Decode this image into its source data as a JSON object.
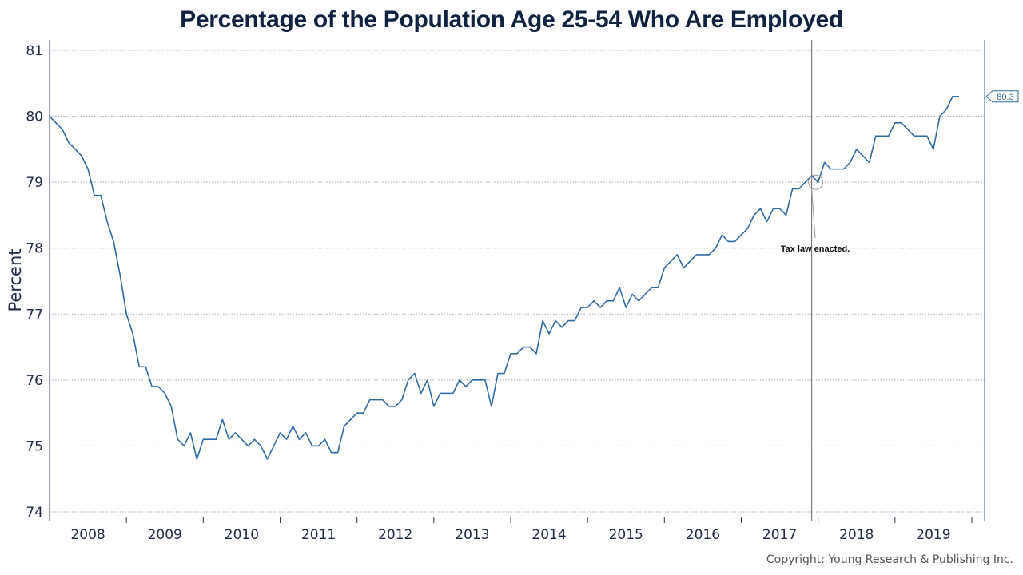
{
  "chart_data": {
    "type": "line",
    "title": "Percentage of the Population Age 25-54 Who Are Employed",
    "ylabel": "Percent",
    "xlabel": "",
    "ylim": [
      74,
      81
    ],
    "yticks": [
      74,
      75,
      76,
      77,
      78,
      79,
      80,
      81
    ],
    "xlim": [
      "2008-01",
      "2020-03"
    ],
    "x_tick_labels": [
      "2008",
      "2009",
      "2010",
      "2011",
      "2012",
      "2013",
      "2014",
      "2015",
      "2016",
      "2017",
      "2018",
      "2019"
    ],
    "grid": "horizontal dotted",
    "line_color": "#2e6ba6",
    "start": "2008-01",
    "frequency": "monthly",
    "series": [
      {
        "values": [
          80.0,
          79.9,
          79.8,
          79.6,
          79.5,
          79.4,
          79.2,
          78.8,
          78.8,
          78.4,
          78.1,
          77.6,
          77.0,
          76.7,
          76.2,
          76.2,
          75.9,
          75.9,
          75.8,
          75.6,
          75.1,
          75.0,
          75.2,
          74.8,
          75.1,
          75.1,
          75.1,
          75.4,
          75.1,
          75.2,
          75.1,
          75.0,
          75.1,
          75.0,
          74.8,
          75.0,
          75.2,
          75.1,
          75.3,
          75.1,
          75.2,
          75.0,
          75.0,
          75.1,
          74.9,
          74.9,
          75.3,
          75.4,
          75.5,
          75.5,
          75.7,
          75.7,
          75.7,
          75.6,
          75.6,
          75.7,
          76.0,
          76.1,
          75.8,
          76.0,
          75.6,
          75.8,
          75.8,
          75.8,
          76.0,
          75.9,
          76.0,
          76.0,
          76.0,
          75.6,
          76.1,
          76.1,
          76.4,
          76.4,
          76.5,
          76.5,
          76.4,
          76.9,
          76.7,
          76.9,
          76.8,
          76.9,
          76.9,
          77.1,
          77.1,
          77.2,
          77.1,
          77.2,
          77.2,
          77.4,
          77.1,
          77.3,
          77.2,
          77.3,
          77.4,
          77.4,
          77.7,
          77.8,
          77.9,
          77.7,
          77.8,
          77.9,
          77.9,
          77.9,
          78.0,
          78.2,
          78.1,
          78.1,
          78.2,
          78.3,
          78.5,
          78.6,
          78.4,
          78.6,
          78.6,
          78.5,
          78.9,
          78.9,
          79.0,
          79.1,
          79.0,
          79.3,
          79.2,
          79.2,
          79.2,
          79.3,
          79.5,
          79.4,
          79.3,
          79.7,
          79.7,
          79.7,
          79.9,
          79.9,
          79.8,
          79.7,
          79.7,
          79.7,
          79.5,
          80.0,
          80.1,
          80.3,
          80.3
        ]
      }
    ],
    "annotations": [
      {
        "text": "Tax law enacted.",
        "x": "2017-12",
        "y": 79.0
      }
    ],
    "last_value_label": "80.3"
  },
  "copyright": "Copyright: Young Research & Publishing Inc."
}
